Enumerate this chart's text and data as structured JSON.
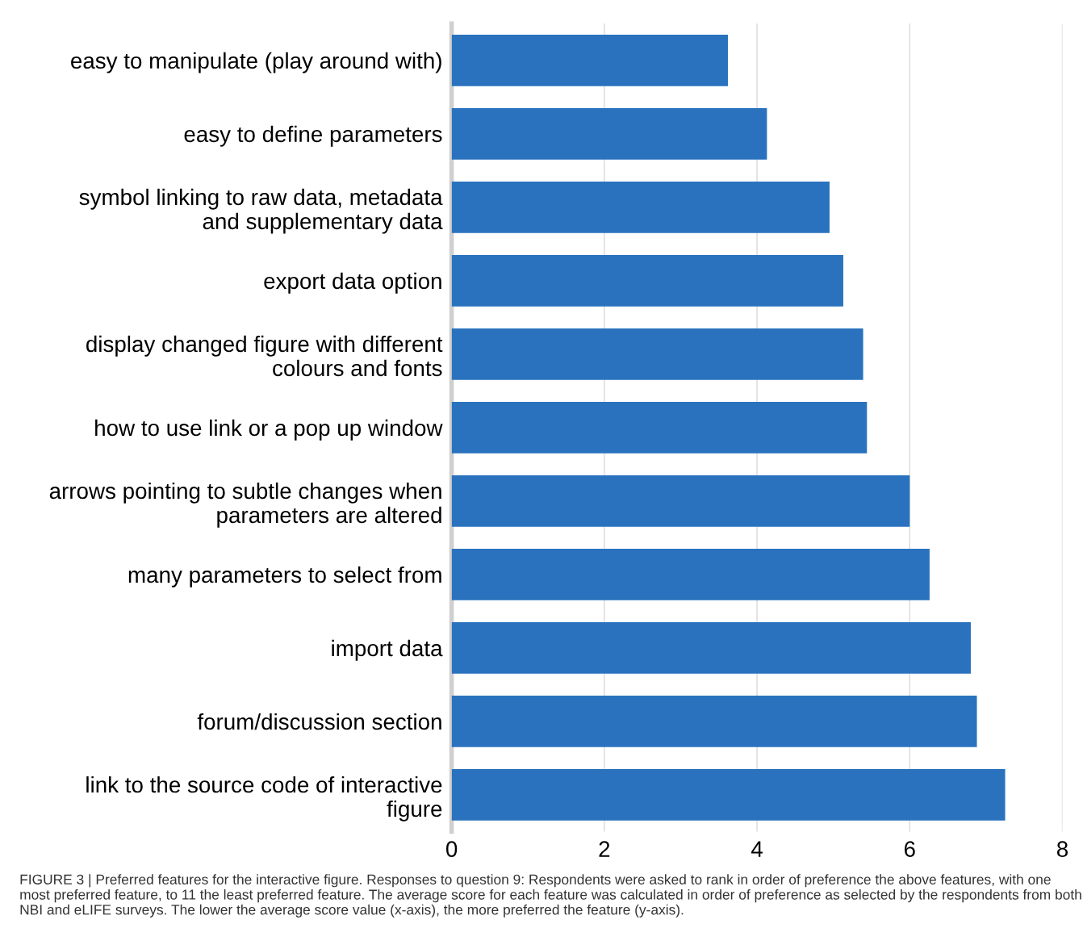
{
  "chart_data": {
    "type": "bar",
    "orientation": "horizontal",
    "categories": [
      "easy to manipulate (play around with)",
      "easy to define parameters",
      "symbol linking to raw data, metadata\nand supplementary data",
      "export data option",
      "display changed figure with different\ncolours and fonts",
      "how to use link or a pop up window",
      "arrows pointing to subtle changes when\nparameters are altered",
      "many parameters to select from",
      "import data",
      "forum/discussion section",
      "link to the source code of interactive\nfigure"
    ],
    "values": [
      3.62,
      4.13,
      4.95,
      5.13,
      5.39,
      5.44,
      6.0,
      6.26,
      6.8,
      6.88,
      7.25
    ],
    "color": "#2a72be",
    "xlim": [
      0,
      8
    ],
    "xticks": [
      0,
      2,
      4,
      6,
      8
    ],
    "grid": "x",
    "legend": false,
    "annotations": [
      "FIGURE 3 | Preferred features for the interactive figure. Responses to question 9: Respondents were asked to rank in order of preference the above features, with one most preferred feature, to 11 the least preferred feature. The average score for each feature was calculated in order of preference as selected by the respondents from both NBI and eLIFE surveys. The lower the average score value (x-axis), the more preferred the feature (y-axis)."
    ]
  }
}
